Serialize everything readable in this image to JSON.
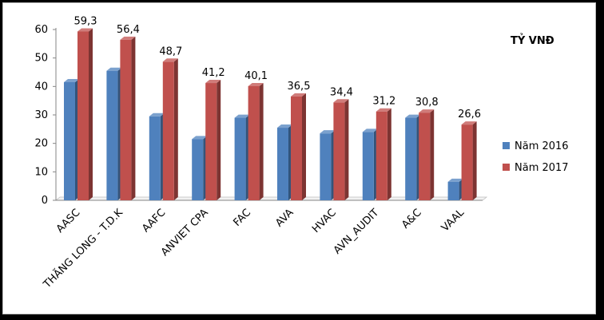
{
  "chart_data": {
    "type": "bar",
    "unit_label": "TỶ VNĐ",
    "categories": [
      "AASC",
      "THĂNG LONG - T.D.K",
      "AAFC",
      "ANVIET CPA",
      "FAC",
      "AVA",
      "HVAC",
      "AVN_AUDIT",
      "A&C",
      "VAAL"
    ],
    "series": [
      {
        "name": "Năm 2016",
        "color": "#4f81bd",
        "values": [
          41.5,
          45.5,
          29.5,
          21.5,
          29.0,
          25.5,
          23.5,
          24.0,
          29.0,
          6.5
        ],
        "labels": []
      },
      {
        "name": "Năm 2017",
        "color": "#c0504d",
        "values": [
          59.3,
          56.4,
          48.7,
          41.2,
          40.1,
          36.5,
          34.4,
          31.2,
          30.8,
          26.6
        ],
        "labels": [
          "59,3",
          "56,4",
          "48,7",
          "41,2",
          "40,1",
          "36,5",
          "34,4",
          "31,2",
          "30,8",
          "26,6"
        ]
      }
    ],
    "ylim": [
      0,
      60
    ],
    "yticks": [
      0,
      10,
      20,
      30,
      40,
      50,
      60
    ],
    "grid": false,
    "legend": "right"
  }
}
